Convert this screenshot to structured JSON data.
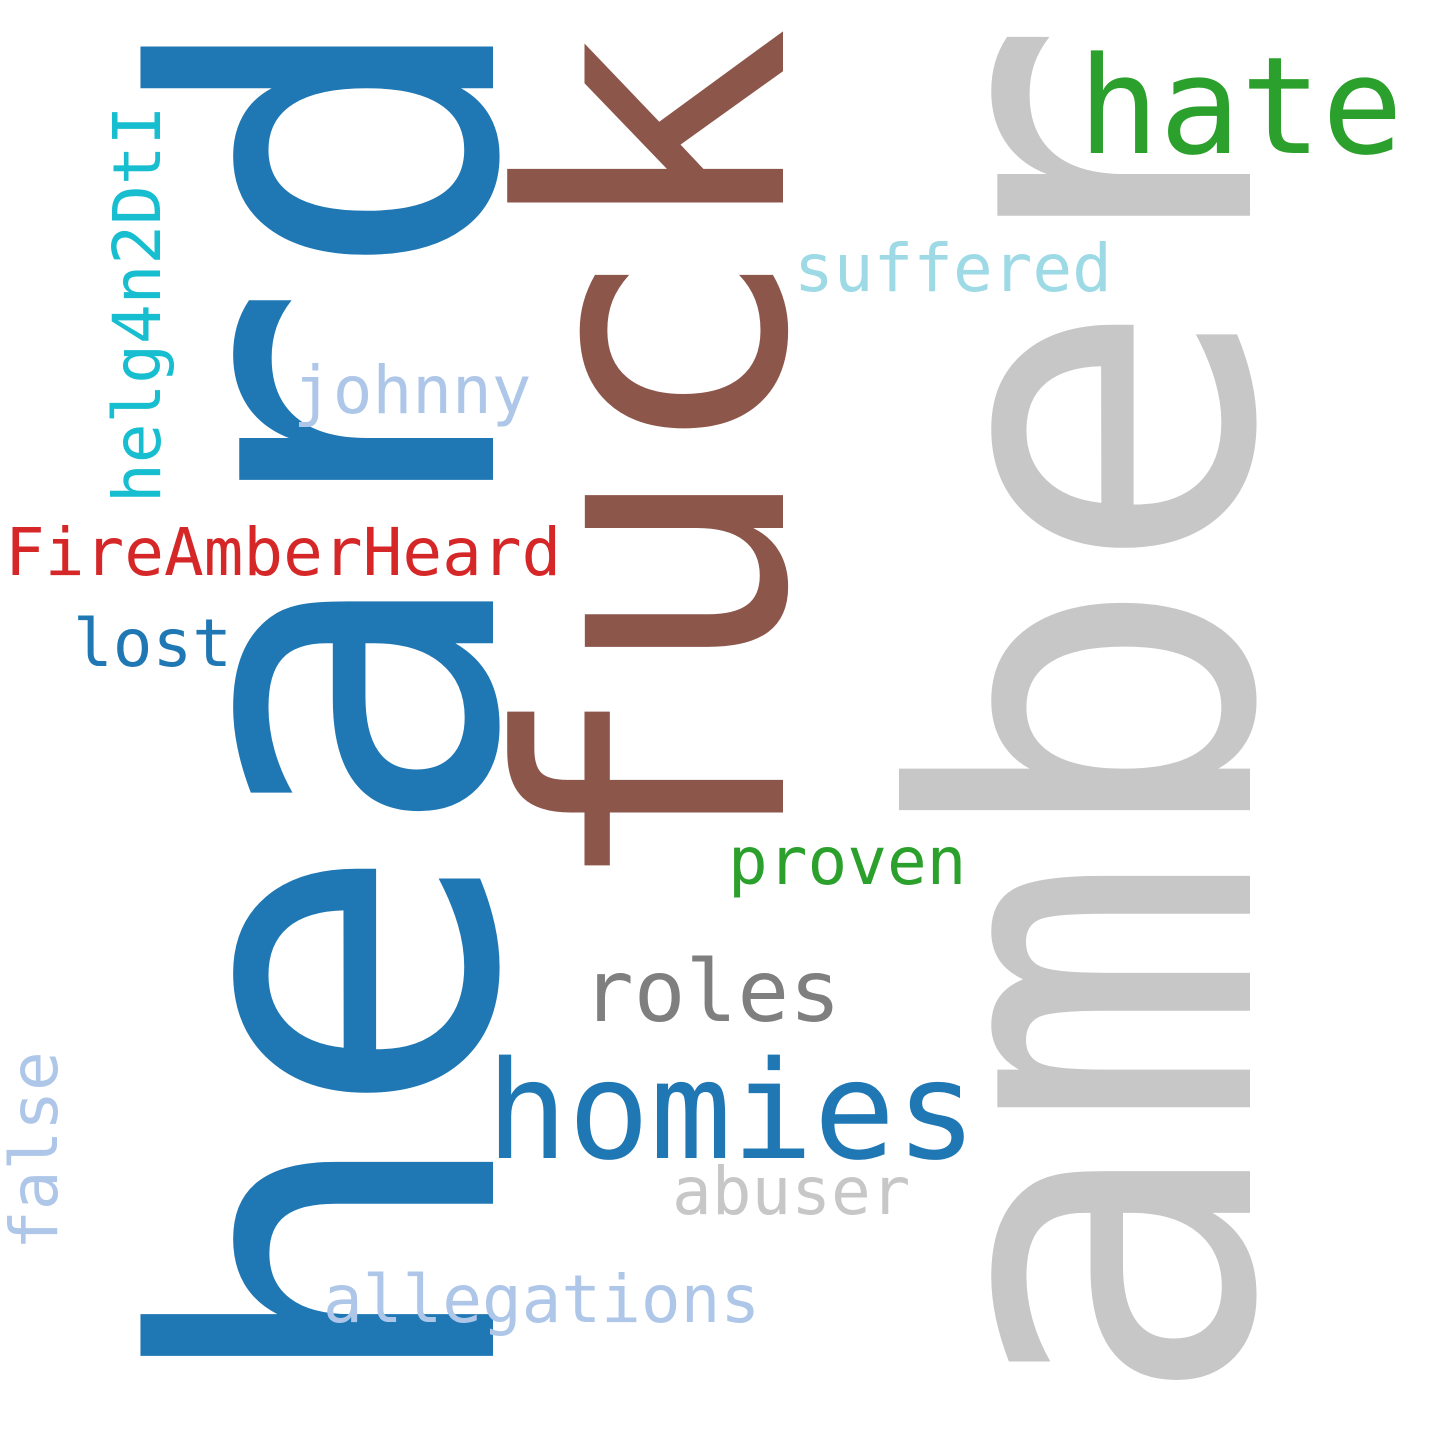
{
  "word_cloud": {
    "words": [
      {
        "id": "heard",
        "text": "heard",
        "color": "#1f77b4",
        "orientation": "vertical"
      },
      {
        "id": "amber",
        "text": "amber",
        "color": "#c7c7c7",
        "orientation": "vertical"
      },
      {
        "id": "fuck",
        "text": "fuck",
        "color": "#8c564b",
        "orientation": "vertical"
      },
      {
        "id": "hate",
        "text": "hate",
        "color": "#2ca02c",
        "orientation": "horizontal"
      },
      {
        "id": "homies",
        "text": "homies",
        "color": "#1f77b4",
        "orientation": "horizontal"
      },
      {
        "id": "roles",
        "text": "roles",
        "color": "#7f7f7f",
        "orientation": "horizontal"
      },
      {
        "id": "suffered",
        "text": "suffered",
        "color": "#9edae5",
        "orientation": "horizontal"
      },
      {
        "id": "johnny",
        "text": "johnny",
        "color": "#aec7e8",
        "orientation": "horizontal"
      },
      {
        "id": "hashtag",
        "text": "FireAmberHeard",
        "color": "#d62728",
        "orientation": "horizontal"
      },
      {
        "id": "code",
        "text": "helg4n2DtI",
        "color": "#17becf",
        "orientation": "vertical"
      },
      {
        "id": "lost",
        "text": "lost",
        "color": "#1f77b4",
        "orientation": "horizontal"
      },
      {
        "id": "proven",
        "text": "proven",
        "color": "#2ca02c",
        "orientation": "horizontal"
      },
      {
        "id": "abuser",
        "text": "abuser",
        "color": "#c7c7c7",
        "orientation": "horizontal"
      },
      {
        "id": "allegations",
        "text": "allegations",
        "color": "#aec7e8",
        "orientation": "horizontal"
      },
      {
        "id": "false",
        "text": "false",
        "color": "#aec7e8",
        "orientation": "vertical"
      }
    ]
  }
}
